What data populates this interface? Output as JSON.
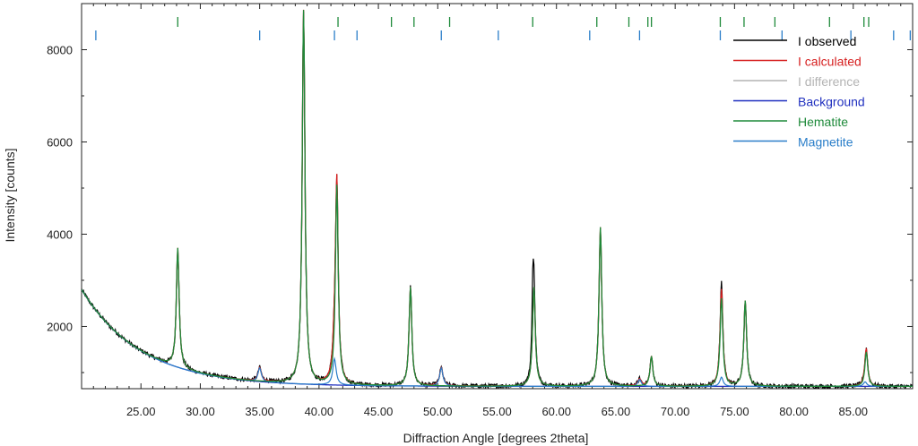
{
  "chart_data": {
    "type": "line",
    "title": "",
    "xlabel": "Diffraction Angle [degrees 2theta]",
    "ylabel": "Intensity [counts]",
    "xlim": [
      20.0,
      90.0
    ],
    "ylim": [
      650,
      9000
    ],
    "grid": false,
    "legend_position": "top-right",
    "x_ticks": [
      25,
      30,
      35,
      40,
      45,
      50,
      55,
      60,
      65,
      70,
      75,
      80,
      85
    ],
    "x_tick_labels": [
      "25.00",
      "30.00",
      "35.00",
      "40.00",
      "45.00",
      "50.00",
      "55.00",
      "60.00",
      "65.00",
      "70.00",
      "75.00",
      "80.00",
      "85.00"
    ],
    "y_ticks": [
      2000,
      4000,
      6000,
      8000
    ],
    "y_tick_labels": [
      "2000",
      "4000",
      "6000",
      "8000"
    ],
    "background": {
      "baseline": 700,
      "amplitude": 2100,
      "decay": 5.0
    },
    "series": [
      {
        "name": "I observed",
        "color": "#000000"
      },
      {
        "name": "I calculated",
        "color": "#d62020"
      },
      {
        "name": "I difference",
        "color": "#b4b4b4"
      },
      {
        "name": "Background",
        "color": "#1f2fbf"
      },
      {
        "name": "Hematite",
        "color": "#1e8a3a"
      },
      {
        "name": "Magnetite",
        "color": "#2a7ec9"
      }
    ],
    "peaks": {
      "hematite": [
        {
          "x": 28.1,
          "y": 3700
        },
        {
          "x": 38.7,
          "y": 8850
        },
        {
          "x": 41.5,
          "y": 5050
        },
        {
          "x": 47.7,
          "y": 2850
        },
        {
          "x": 58.1,
          "y": 2850
        },
        {
          "x": 63.7,
          "y": 4150
        },
        {
          "x": 68.0,
          "y": 1350
        },
        {
          "x": 73.9,
          "y": 2600
        },
        {
          "x": 75.9,
          "y": 2550
        },
        {
          "x": 86.1,
          "y": 1450
        }
      ],
      "magnetite": [
        {
          "x": 35.0,
          "y": 1100
        },
        {
          "x": 41.3,
          "y": 1300
        },
        {
          "x": 50.3,
          "y": 1100
        },
        {
          "x": 67.0,
          "y": 850
        },
        {
          "x": 73.9,
          "y": 900
        },
        {
          "x": 86.0,
          "y": 800
        }
      ],
      "observed_top": [
        {
          "x": 58.0,
          "y": 3250
        },
        {
          "x": 73.9,
          "y": 2950
        }
      ]
    },
    "reflection_ticks": {
      "hematite": [
        28.1,
        41.6,
        46.1,
        48.0,
        51.0,
        58.0,
        63.4,
        66.1,
        67.7,
        68.0,
        73.8,
        75.8,
        78.4,
        83.0,
        85.9,
        86.3
      ],
      "magnetite": [
        21.2,
        35.0,
        41.3,
        43.2,
        50.3,
        55.1,
        62.8,
        67.0,
        73.8,
        79.0,
        84.8,
        88.4,
        89.8
      ]
    }
  }
}
